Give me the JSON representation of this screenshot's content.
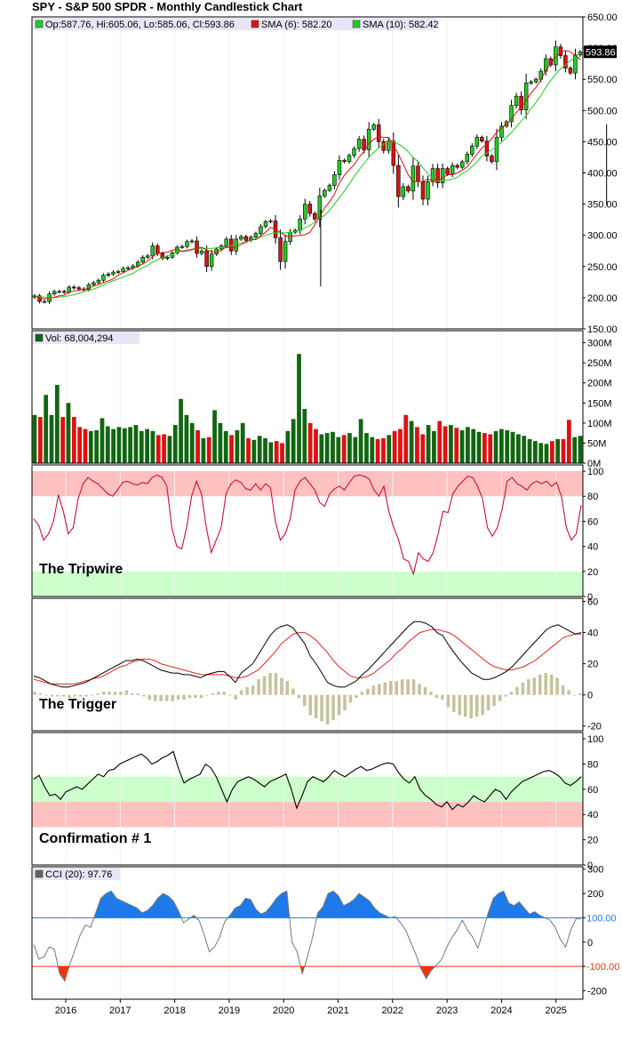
{
  "title": "SPY - S&P 500 SPDR - Monthly Candlestick Chart",
  "colors": {
    "up": "#22cc22",
    "down": "#dd1111",
    "sma_fast": "#dd1111",
    "sma_slow": "#22cc22",
    "vol_up": "#116611",
    "vol_down": "#dd1111",
    "zone_red": "#ffc0c0",
    "zone_green": "#ccffcc",
    "cci_pos": "#1e7ae8",
    "cci_neg": "#ee3311",
    "legend_bg": "#e6e6f7"
  },
  "x_axis": {
    "labels": [
      "2016",
      "2017",
      "2018",
      "2019",
      "2020",
      "2021",
      "2022",
      "2023",
      "2024",
      "2025"
    ]
  },
  "chart_data": [
    {
      "type": "candlestick",
      "legend": {
        "ohlc": "Op:587.76, Hi:605.06, Lo:585.06, Cl:593.86",
        "sma_fast": "SMA (6): 582.20",
        "sma_slow": "SMA (10): 582.42"
      },
      "last_price_label": "593.86",
      "y_ticks": [
        650,
        600,
        550,
        500,
        450,
        400,
        350,
        300,
        250,
        200,
        150
      ],
      "y_tick_labels": [
        "650.00",
        "600.00",
        "550.00",
        "500.00",
        "450.00",
        "400.00",
        "350.00",
        "300.00",
        "250.00",
        "200.00",
        "150.00"
      ],
      "ylim": [
        150,
        650
      ],
      "closes": [
        203,
        194,
        194,
        206,
        210,
        210,
        209,
        217,
        216,
        214,
        213,
        221,
        224,
        228,
        236,
        238,
        241,
        242,
        247,
        248,
        251,
        257,
        265,
        267,
        283,
        271,
        263,
        265,
        272,
        281,
        282,
        290,
        291,
        271,
        275,
        250,
        270,
        278,
        283,
        294,
        275,
        294,
        298,
        292,
        297,
        303,
        314,
        322,
        323,
        296,
        258,
        290,
        305,
        308,
        326,
        350,
        335,
        326,
        363,
        372,
        380,
        397,
        420,
        418,
        428,
        439,
        454,
        437,
        470,
        477,
        450,
        436,
        451,
        412,
        362,
        378,
        371,
        411,
        386,
        358,
        386,
        407,
        384,
        407,
        398,
        412,
        409,
        418,
        430,
        443,
        457,
        451,
        427,
        418,
        457,
        475,
        482,
        508,
        523,
        501,
        544,
        546,
        550,
        563,
        583,
        573,
        602,
        588,
        568,
        560,
        589,
        594
      ],
      "sma_fast": [
        203,
        200,
        198,
        199,
        201,
        203,
        204,
        209,
        211,
        212,
        213,
        215,
        219,
        221,
        224,
        227,
        230,
        236,
        240,
        244,
        247,
        250,
        254,
        259,
        266,
        271,
        272,
        273,
        276,
        278,
        274,
        275,
        277,
        279,
        281,
        276,
        274,
        273,
        276,
        282,
        278,
        282,
        285,
        289,
        294,
        293,
        299,
        305,
        313,
        309,
        305,
        299,
        298,
        299,
        300,
        301,
        305,
        317,
        330,
        344,
        354,
        366,
        384,
        396,
        405,
        413,
        425,
        434,
        447,
        454,
        458,
        457,
        457,
        445,
        430,
        414,
        397,
        386,
        386,
        386,
        390,
        388,
        389,
        392,
        397,
        397,
        400,
        404,
        410,
        420,
        430,
        440,
        446,
        455,
        465,
        472,
        478,
        486,
        497,
        505,
        516,
        528,
        537,
        549,
        565,
        575,
        585,
        594,
        596,
        594,
        588,
        582
      ],
      "sma_slow": [
        203,
        202,
        201,
        200,
        200,
        201,
        202,
        203,
        205,
        207,
        210,
        212,
        214,
        217,
        220,
        224,
        227,
        230,
        233,
        236,
        239,
        244,
        248,
        252,
        257,
        261,
        264,
        267,
        270,
        273,
        275,
        276,
        278,
        279,
        279,
        279,
        279,
        280,
        281,
        282,
        283,
        286,
        288,
        290,
        292,
        294,
        297,
        300,
        303,
        304,
        304,
        304,
        305,
        306,
        308,
        312,
        316,
        321,
        327,
        332,
        340,
        350,
        361,
        371,
        382,
        394,
        405,
        415,
        425,
        433,
        440,
        446,
        450,
        450,
        446,
        441,
        434,
        425,
        418,
        408,
        399,
        391,
        387,
        389,
        388,
        390,
        393,
        399,
        403,
        410,
        418,
        427,
        432,
        437,
        443,
        449,
        457,
        465,
        474,
        483,
        492,
        503,
        513,
        524,
        537,
        548,
        558,
        567,
        573,
        580,
        585,
        582
      ],
      "wick_marks": [
        {
          "x": 52.4,
          "high": 341,
          "low": 218
        },
        {
          "x": 104.3,
          "high": 478,
          "low": 348
        },
        {
          "x": 107.5,
          "high": 613,
          "low": 482
        }
      ]
    },
    {
      "type": "bar",
      "title": "Volume",
      "legend": "Vol: 68,004,294",
      "y_ticks": [
        300,
        250,
        200,
        150,
        100,
        50,
        0
      ],
      "y_tick_labels": [
        "300M",
        "250M",
        "200M",
        "150M",
        "100M",
        "50M",
        "0M"
      ],
      "ylim": [
        0,
        330
      ],
      "values": [
        120,
        115,
        170,
        120,
        195,
        115,
        150,
        115,
        90,
        85,
        80,
        82,
        112,
        92,
        85,
        90,
        87,
        90,
        95,
        80,
        85,
        80,
        70,
        72,
        68,
        95,
        160,
        120,
        100,
        82,
        62,
        65,
        132,
        100,
        80,
        70,
        82,
        100,
        62,
        58,
        68,
        62,
        52,
        55,
        50,
        80,
        110,
        272,
        135,
        100,
        85,
        72,
        75,
        78,
        65,
        70,
        75,
        65,
        110,
        75,
        65,
        60,
        62,
        70,
        80,
        85,
        120,
        105,
        90,
        72,
        95,
        80,
        105,
        92,
        95,
        88,
        82,
        90,
        85,
        78,
        75,
        72,
        80,
        85,
        82,
        78,
        72,
        68,
        60,
        55,
        50,
        48,
        55,
        60,
        60,
        108,
        65,
        68
      ]
    },
    {
      "type": "line",
      "title": "The Tripwire",
      "y_ticks": [
        100,
        80,
        60,
        40,
        20,
        0
      ],
      "ylim": [
        0,
        105
      ],
      "zones": [
        {
          "from": 80,
          "to": 100,
          "color": "zone_red"
        },
        {
          "from": 0,
          "to": 20,
          "color": "zone_green"
        }
      ],
      "values": [
        62,
        57,
        45,
        50,
        60,
        81,
        68,
        50,
        55,
        78,
        90,
        95,
        92,
        90,
        86,
        82,
        80,
        85,
        91,
        92,
        90,
        89,
        91,
        90,
        95,
        97,
        95,
        88,
        55,
        40,
        38,
        55,
        80,
        92,
        82,
        55,
        35,
        45,
        55,
        82,
        90,
        93,
        91,
        86,
        85,
        90,
        85,
        90,
        87,
        60,
        45,
        50,
        62,
        85,
        92,
        95,
        90,
        85,
        75,
        72,
        82,
        86,
        88,
        85,
        91,
        96,
        97,
        96,
        94,
        85,
        80,
        88,
        68,
        55,
        45,
        30,
        28,
        18,
        35,
        30,
        28,
        35,
        50,
        68,
        67,
        82,
        88,
        92,
        96,
        95,
        88,
        78,
        55,
        48,
        55,
        70,
        92,
        95,
        90,
        88,
        85,
        90,
        92,
        90,
        92,
        88,
        91,
        80,
        55,
        45,
        50,
        73
      ],
      "label_marker": "The Tripwire"
    },
    {
      "type": "line",
      "title": "The Trigger",
      "y_ticks": [
        60,
        40,
        20,
        0,
        -20
      ],
      "ylim": [
        -23,
        62
      ],
      "macd": [
        12,
        11,
        9,
        7,
        6,
        5,
        5,
        6,
        7,
        8,
        10,
        12,
        14,
        16,
        18,
        20,
        22,
        22,
        23,
        22,
        20,
        18,
        16,
        15,
        14,
        14,
        13,
        13,
        12,
        11,
        13,
        14,
        15,
        15,
        12,
        8,
        14,
        17,
        20,
        26,
        32,
        38,
        42,
        44,
        45,
        43,
        38,
        33,
        25,
        20,
        14,
        8,
        6,
        5,
        5,
        7,
        9,
        13,
        16,
        20,
        24,
        28,
        32,
        36,
        40,
        44,
        47,
        47,
        46,
        44,
        40,
        38,
        32,
        27,
        22,
        18,
        14,
        12,
        10,
        10,
        11,
        13,
        15,
        18,
        22,
        26,
        30,
        34,
        38,
        42,
        44,
        45,
        43,
        41,
        39,
        40
      ],
      "signal": [
        10,
        9,
        8,
        7,
        7,
        7,
        7,
        7,
        8,
        9,
        10,
        11,
        12,
        14,
        16,
        18,
        19,
        21,
        22,
        23,
        23,
        22,
        20,
        19,
        18,
        17,
        16,
        15,
        14,
        13,
        13,
        13,
        13,
        13,
        12,
        11,
        11,
        12,
        14,
        16,
        20,
        24,
        28,
        33,
        36,
        39,
        40,
        40,
        38,
        35,
        31,
        27,
        22,
        18,
        15,
        12,
        11,
        11,
        12,
        14,
        17,
        20,
        23,
        27,
        30,
        34,
        37,
        40,
        41,
        42,
        42,
        41,
        40,
        38,
        35,
        32,
        29,
        26,
        23,
        20,
        18,
        17,
        16,
        16,
        17,
        18,
        20,
        22,
        25,
        28,
        31,
        34,
        37,
        38,
        39,
        39
      ],
      "histogram": [
        2,
        1,
        0,
        -1,
        -1,
        -1,
        -2,
        -1,
        -1,
        -1,
        0,
        1,
        2,
        2,
        2,
        2,
        3,
        1,
        1,
        -1,
        -3,
        -4,
        -4,
        -4,
        -4,
        -3,
        -3,
        -2,
        -2,
        -2,
        0,
        1,
        2,
        2,
        0,
        -3,
        3,
        5,
        6,
        10,
        12,
        14,
        14,
        11,
        9,
        4,
        -2,
        -7,
        -13,
        -15,
        -17,
        -19,
        -16,
        -13,
        -10,
        -5,
        -2,
        2,
        4,
        6,
        7,
        8,
        9,
        9,
        10,
        10,
        10,
        7,
        5,
        2,
        -2,
        -3,
        -8,
        -11,
        -13,
        -14,
        -15,
        -14,
        -13,
        -10,
        -7,
        -4,
        -1,
        2,
        5,
        8,
        10,
        11,
        13,
        14,
        13,
        11,
        6,
        3,
        0,
        1
      ],
      "label_marker": "The Trigger"
    },
    {
      "type": "line",
      "title": "Confirmation # 1",
      "y_ticks": [
        100,
        80,
        60,
        40,
        20,
        0
      ],
      "ylim": [
        0,
        105
      ],
      "zones": [
        {
          "from": 50,
          "to": 70,
          "color": "zone_green"
        },
        {
          "from": 30,
          "to": 50,
          "color": "zone_red"
        }
      ],
      "values": [
        68,
        71,
        62,
        55,
        56,
        52,
        58,
        60,
        62,
        60,
        64,
        68,
        72,
        70,
        75,
        76,
        80,
        82,
        84,
        86,
        88,
        85,
        80,
        82,
        85,
        87,
        90,
        76,
        65,
        68,
        70,
        72,
        80,
        77,
        70,
        60,
        50,
        60,
        66,
        68,
        70,
        68,
        65,
        62,
        66,
        68,
        70,
        72,
        60,
        45,
        55,
        66,
        70,
        68,
        66,
        70,
        75,
        72,
        70,
        73,
        76,
        78,
        75,
        76,
        78,
        80,
        81,
        80,
        73,
        68,
        65,
        70,
        60,
        55,
        52,
        48,
        46,
        50,
        44,
        48,
        46,
        50,
        55,
        52,
        50,
        55,
        60,
        58,
        52,
        58,
        62,
        66,
        68,
        70,
        72,
        74,
        75,
        73,
        70,
        65,
        63,
        66,
        70
      ],
      "label_marker": "Confirmation # 1"
    },
    {
      "type": "area",
      "title": "CCI",
      "legend": "CCI (20): 97.76",
      "y_ticks": [
        300,
        200,
        100,
        0,
        -100,
        -200
      ],
      "ylim": [
        -235,
        310
      ],
      "thresholds": [
        {
          "value": 100,
          "label": "100.00",
          "color": "cci_pos"
        },
        {
          "value": -100,
          "label": "-100.00",
          "color": "cci_neg"
        }
      ],
      "values": [
        -10,
        -70,
        -60,
        -20,
        -30,
        -130,
        -160,
        -90,
        -30,
        30,
        70,
        60,
        120,
        180,
        200,
        210,
        180,
        170,
        160,
        150,
        140,
        120,
        130,
        150,
        180,
        200,
        190,
        170,
        130,
        80,
        95,
        110,
        90,
        30,
        -40,
        -20,
        20,
        85,
        110,
        140,
        150,
        180,
        175,
        135,
        115,
        125,
        150,
        180,
        200,
        210,
        0,
        -40,
        -130,
        -60,
        20,
        120,
        145,
        200,
        210,
        190,
        150,
        160,
        175,
        200,
        185,
        170,
        140,
        120,
        110,
        100,
        105,
        80,
        50,
        0,
        -50,
        -110,
        -150,
        -115,
        -95,
        -70,
        -20,
        20,
        50,
        90,
        50,
        20,
        -25,
        45,
        120,
        180,
        200,
        210,
        160,
        150,
        165,
        140,
        115,
        125,
        110,
        100,
        90,
        60,
        10,
        -20,
        50,
        95,
        98
      ]
    }
  ]
}
